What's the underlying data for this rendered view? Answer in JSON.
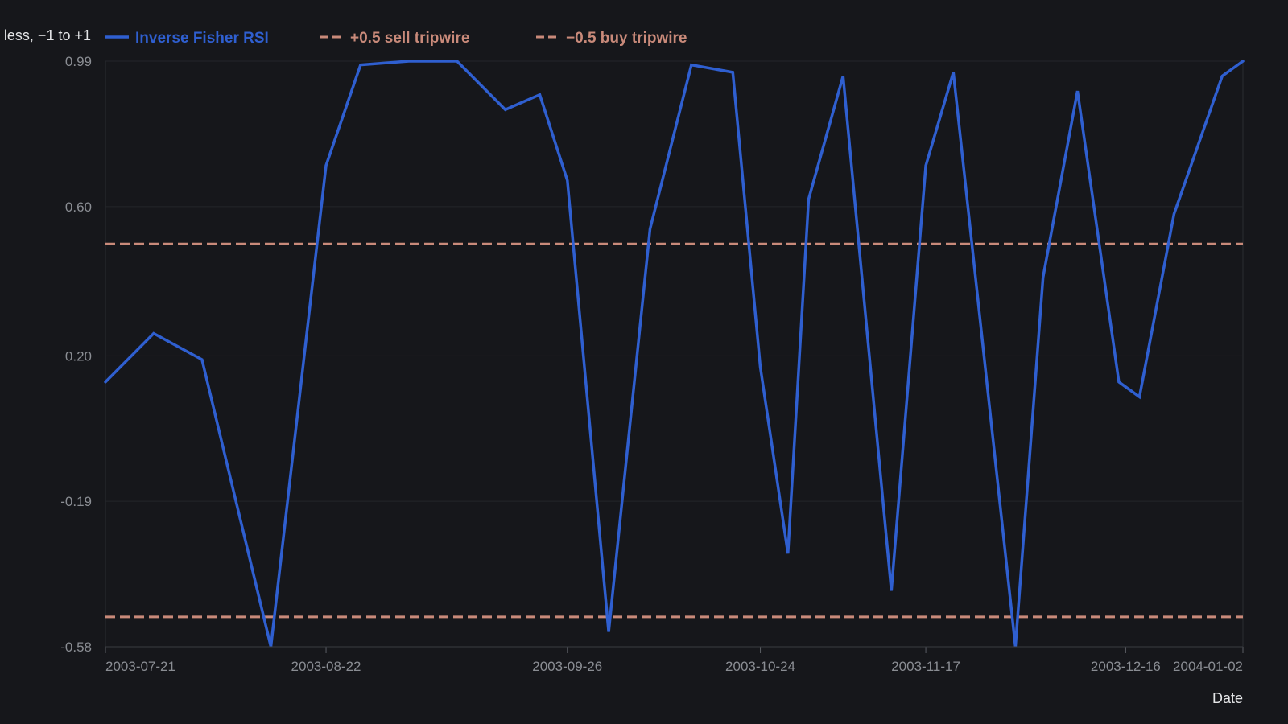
{
  "chart_data": {
    "type": "line",
    "ylabel": "less, −1 to +1",
    "xlabel": "Date",
    "ylim": [
      -0.58,
      0.99
    ],
    "y_ticks": [
      "0.99",
      "0.60",
      "0.20",
      "-0.19",
      "-0.58"
    ],
    "y_tick_values": [
      0.99,
      0.6,
      0.2,
      -0.19,
      -0.58
    ],
    "x_ticks": [
      "2003-07-21",
      "2003-08-22",
      "2003-09-26",
      "2003-10-24",
      "2003-11-17",
      "2003-12-16",
      "2004-01-02"
    ],
    "xlim": [
      "2003-07-21",
      "2004-01-02"
    ],
    "grid": true,
    "legend_position": "top-left",
    "series": [
      {
        "name": "Inverse Fisher RSI",
        "color": "#2f5fd0",
        "style": "solid",
        "points": [
          [
            "2003-07-21",
            0.13
          ],
          [
            "2003-07-28",
            0.26
          ],
          [
            "2003-08-04",
            0.19
          ],
          [
            "2003-08-14",
            -0.58
          ],
          [
            "2003-08-22",
            0.71
          ],
          [
            "2003-08-27",
            0.98
          ],
          [
            "2003-09-03",
            0.99
          ],
          [
            "2003-09-10",
            0.99
          ],
          [
            "2003-09-17",
            0.86
          ],
          [
            "2003-09-22",
            0.9
          ],
          [
            "2003-09-26",
            0.67
          ],
          [
            "2003-10-02",
            -0.54
          ],
          [
            "2003-10-08",
            0.54
          ],
          [
            "2003-10-14",
            0.98
          ],
          [
            "2003-10-20",
            0.96
          ],
          [
            "2003-10-24",
            0.17
          ],
          [
            "2003-10-28",
            -0.33
          ],
          [
            "2003-10-31",
            0.62
          ],
          [
            "2003-11-05",
            0.95
          ],
          [
            "2003-11-12",
            -0.43
          ],
          [
            "2003-11-17",
            0.71
          ],
          [
            "2003-11-21",
            0.96
          ],
          [
            "2003-11-30",
            -0.58
          ],
          [
            "2003-12-04",
            0.41
          ],
          [
            "2003-12-09",
            0.91
          ],
          [
            "2003-12-15",
            0.13
          ],
          [
            "2003-12-18",
            0.09
          ],
          [
            "2003-12-23",
            0.58
          ],
          [
            "2003-12-30",
            0.95
          ],
          [
            "2004-01-02",
            0.99
          ]
        ]
      },
      {
        "name": "+0.5 sell tripwire",
        "color": "#c98a7a",
        "style": "dashed",
        "constant": 0.5
      },
      {
        "name": "−0.5 buy tripwire",
        "color": "#c98a7a",
        "style": "dashed",
        "constant": -0.5
      }
    ]
  }
}
